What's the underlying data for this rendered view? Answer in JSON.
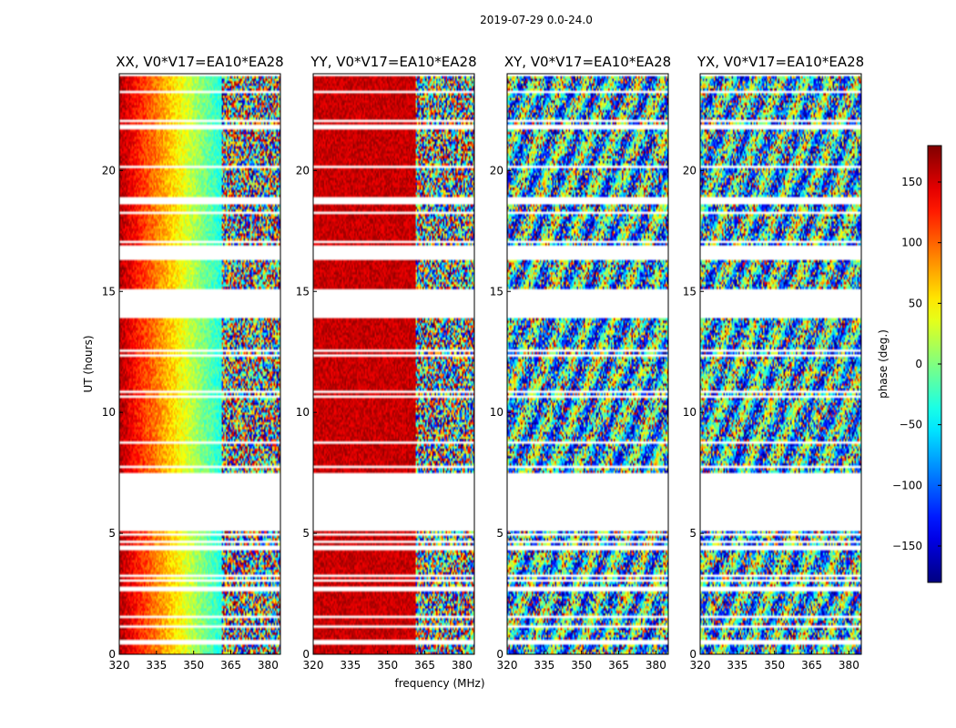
{
  "chart_data": {
    "type": "heatmap",
    "title": "2019-07-29 0.0-24.0",
    "xlabel": "frequency (MHz)",
    "ylabel": "UT (hours)",
    "xlim": [
      320,
      385
    ],
    "ylim": [
      0,
      24
    ],
    "xticks": [
      "320",
      "335",
      "350",
      "365",
      "380"
    ],
    "yticks": [
      "0",
      "5",
      "10",
      "15",
      "20"
    ],
    "colorbar": {
      "label": "phase (deg.)",
      "range": [
        -180,
        180
      ],
      "ticks": [
        "−150",
        "−100",
        "−50",
        "0",
        "50",
        "100",
        "150"
      ],
      "colormap": "jet"
    },
    "panels": [
      {
        "title": "XX, V0*V17=EA10*EA28",
        "pattern": "gradient"
      },
      {
        "title": "YY, V0*V17=EA10*EA28",
        "pattern": "constant"
      },
      {
        "title": "XY, V0*V17=EA10*EA28",
        "pattern": "noise"
      },
      {
        "title": "YX, V0*V17=EA10*EA28",
        "pattern": "noise"
      }
    ],
    "data_blocks_ut": [
      [
        0.0,
        0.4
      ],
      [
        0.6,
        2.6
      ],
      [
        2.8,
        3.2
      ],
      [
        3.3,
        4.3
      ],
      [
        4.5,
        5.1
      ],
      [
        7.5,
        10.8
      ],
      [
        10.9,
        12.3
      ],
      [
        12.4,
        13.9
      ],
      [
        15.1,
        16.4
      ],
      [
        16.9,
        18.6
      ],
      [
        18.9,
        21.7
      ],
      [
        21.9,
        24.0
      ]
    ],
    "flagged_ut": [
      [
        5.1,
        7.5
      ],
      [
        13.9,
        15.1
      ]
    ]
  }
}
